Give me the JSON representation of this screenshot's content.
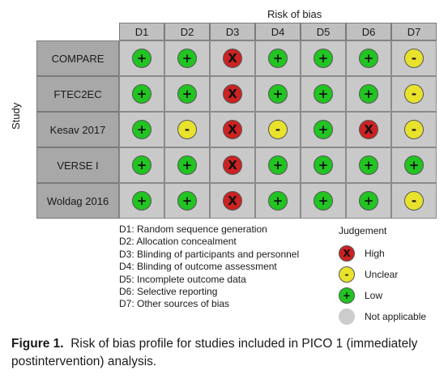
{
  "header_title": "Risk of bias",
  "y_axis_label": "Study",
  "domains": [
    "D1",
    "D2",
    "D3",
    "D4",
    "D5",
    "D6",
    "D7"
  ],
  "studies": [
    {
      "name": "COMPARE",
      "judgements": [
        "low",
        "low",
        "high",
        "low",
        "low",
        "low",
        "unclear"
      ]
    },
    {
      "name": "FTEC2EC",
      "judgements": [
        "low",
        "low",
        "high",
        "low",
        "low",
        "low",
        "unclear"
      ]
    },
    {
      "name": "Kesav 2017",
      "judgements": [
        "low",
        "unclear",
        "high",
        "unclear",
        "low",
        "high",
        "unclear"
      ]
    },
    {
      "name": "VERSE I",
      "judgements": [
        "low",
        "low",
        "high",
        "low",
        "low",
        "low",
        "low"
      ]
    },
    {
      "name": "Woldag 2016",
      "judgements": [
        "low",
        "low",
        "high",
        "low",
        "low",
        "low",
        "unclear"
      ]
    }
  ],
  "domain_descriptions": [
    "D1: Random sequence generation",
    "D2: Allocation concealment",
    "D3: Blinding of participants and personnel",
    "D4: Blinding of outcome assessment",
    "D5: Incomplete outcome data",
    "D6: Selective reporting",
    "D7: Other sources of bias"
  ],
  "judgement_legend": {
    "title": "Judgement",
    "items": [
      {
        "key": "high",
        "symbol": "X",
        "label": "High"
      },
      {
        "key": "unclear",
        "symbol": "-",
        "label": "Unclear"
      },
      {
        "key": "low",
        "symbol": "+",
        "label": "Low"
      },
      {
        "key": "na",
        "symbol": "",
        "label": "Not applicable"
      }
    ]
  },
  "symbols": {
    "low": "+",
    "unclear": "-",
    "high": "X",
    "na": ""
  },
  "colors": {
    "low": "#21c421",
    "unclear": "#e8e22c",
    "high": "#cc2222",
    "na": "#cccccc"
  },
  "caption": {
    "label": "Figure 1.",
    "text": "Risk of bias profile for studies included in PICO 1 (immediately postintervention) analysis."
  }
}
